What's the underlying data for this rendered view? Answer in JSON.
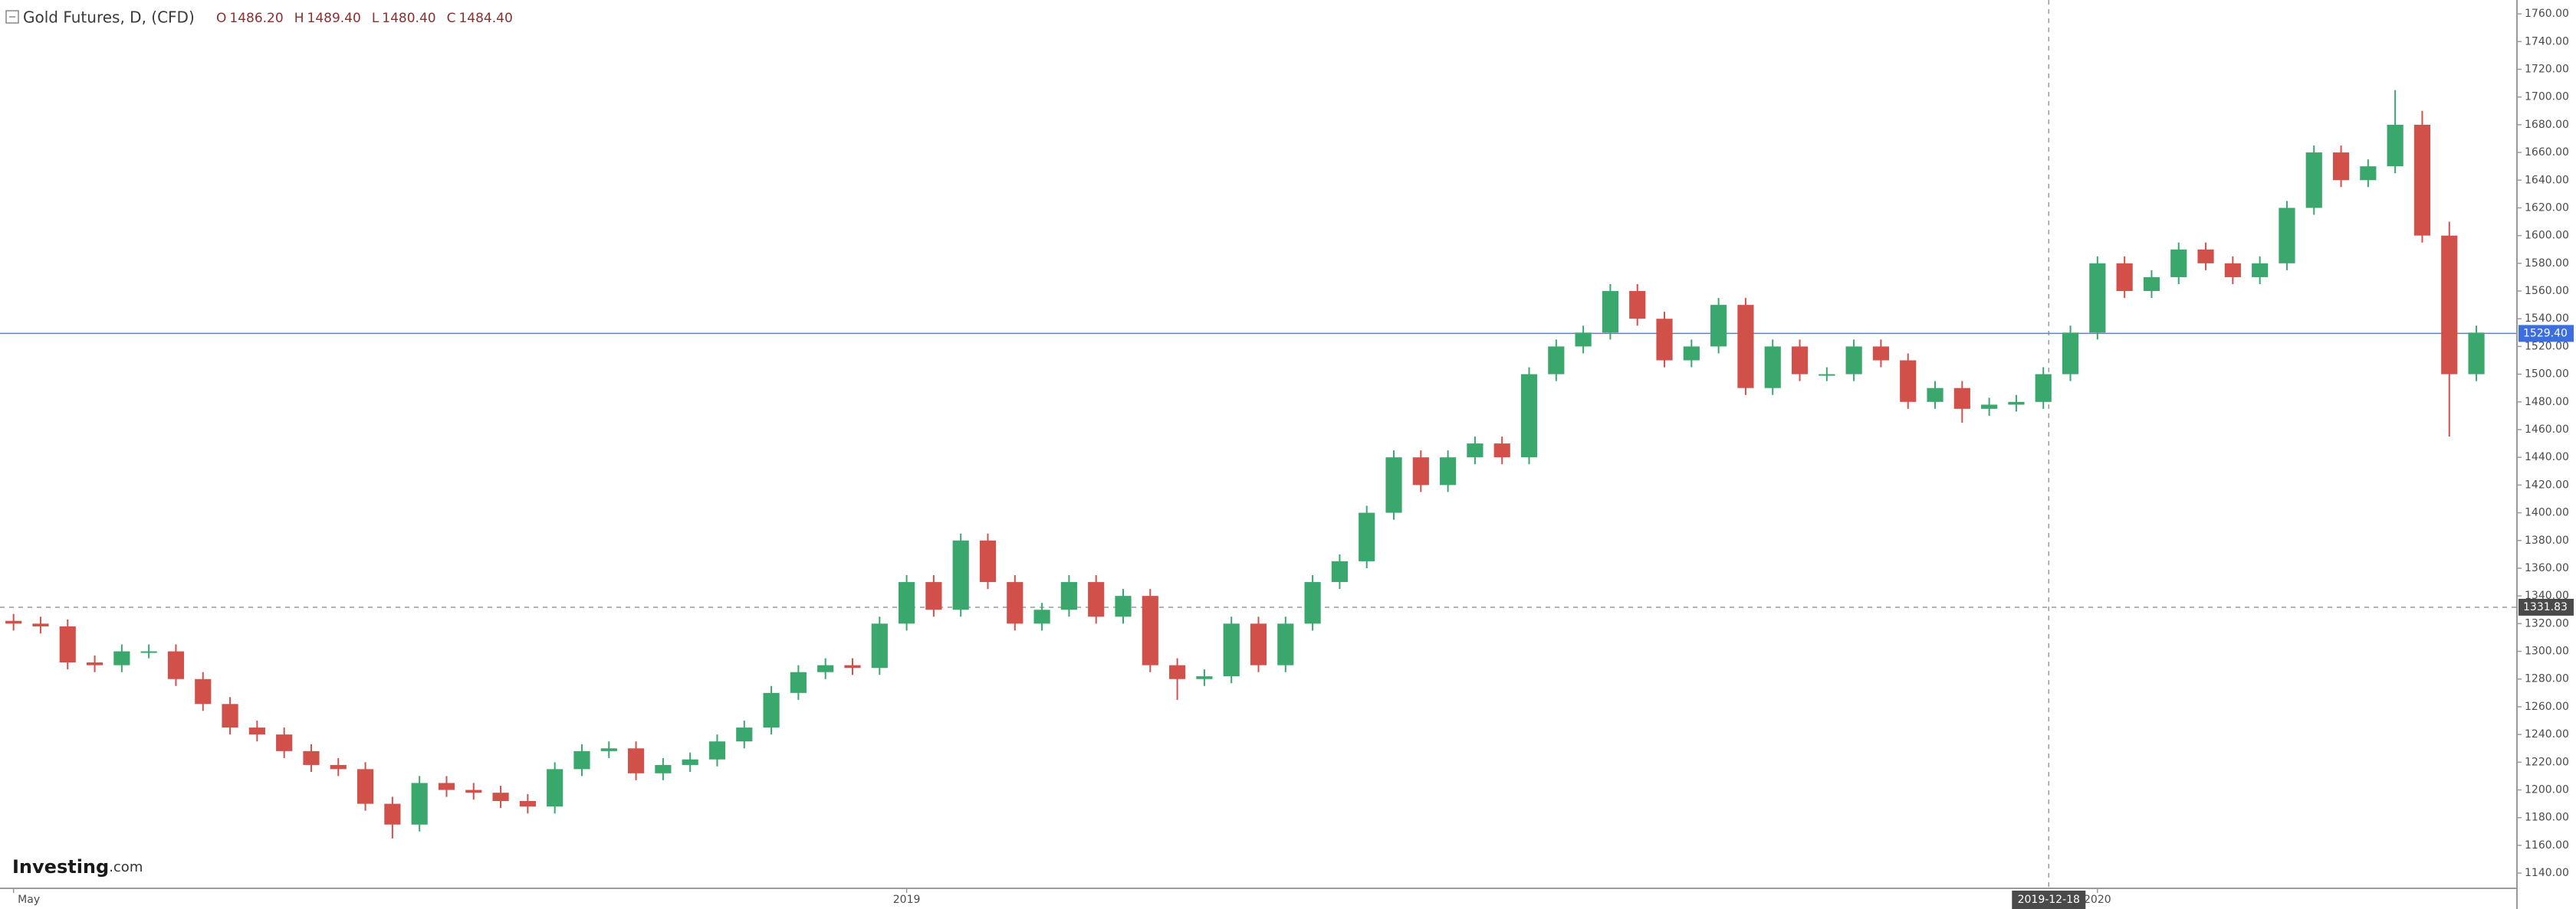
{
  "header": {
    "title": "Gold Futures, D, (CFD)",
    "ohlc": [
      {
        "key": "O",
        "value": {
          "value": 1486.2,
          "label": "1486.20"
        }
      },
      {
        "key": "H",
        "value": {
          "value": 1489.4,
          "label": "1489.40"
        }
      },
      {
        "key": "L",
        "value": {
          "value": 1480.4,
          "label": "1480.40"
        }
      },
      {
        "key": "C",
        "value": {
          "value": 1484.4,
          "label": "1484.40"
        }
      }
    ]
  },
  "logo": {
    "name": "Investing",
    "suffix": ".com"
  },
  "chart_data": {
    "type": "candlestick",
    "up_color": "#3aa76d",
    "down_color": "#d1514a",
    "open": [
      1322,
      1320,
      1318,
      1292,
      1290,
      1300,
      1300,
      1280,
      1262,
      1245,
      1240,
      1228,
      1218,
      1215,
      1190,
      1175,
      1205,
      1200,
      1198,
      1192,
      1188,
      1215,
      1228,
      1230,
      1212,
      1218,
      1222,
      1235,
      1245,
      1270,
      1285,
      1290,
      1288,
      1320,
      1350,
      1330,
      1380,
      1350,
      1320,
      1330,
      1350,
      1325,
      1340,
      1290,
      1280,
      1282,
      1320,
      1290,
      1320,
      1350,
      1365,
      1400,
      1440,
      1420,
      1440,
      1450,
      1440,
      1500,
      1520,
      1530,
      1560,
      1540,
      1510,
      1520,
      1550,
      1490,
      1520,
      1500,
      1500,
      1520,
      1510,
      1480,
      1490,
      1475,
      1478,
      1480,
      1500,
      1530,
      1580,
      1560,
      1570,
      1590,
      1580,
      1570,
      1580,
      1620,
      1660,
      1640,
      1650,
      1680,
      1600,
      1500
    ],
    "high": [
      1327,
      1325,
      1323,
      1297,
      1305,
      1305,
      1305,
      1285,
      1267,
      1250,
      1245,
      1233,
      1223,
      1220,
      1195,
      1210,
      1210,
      1205,
      1203,
      1197,
      1220,
      1233,
      1235,
      1235,
      1223,
      1227,
      1240,
      1250,
      1275,
      1290,
      1295,
      1295,
      1325,
      1355,
      1355,
      1385,
      1385,
      1355,
      1335,
      1355,
      1355,
      1345,
      1345,
      1295,
      1287,
      1325,
      1325,
      1325,
      1355,
      1370,
      1405,
      1445,
      1445,
      1445,
      1455,
      1455,
      1505,
      1525,
      1535,
      1565,
      1565,
      1545,
      1525,
      1555,
      1555,
      1525,
      1525,
      1505,
      1525,
      1525,
      1515,
      1495,
      1495,
      1483,
      1485,
      1505,
      1535,
      1585,
      1585,
      1575,
      1595,
      1595,
      1585,
      1585,
      1625,
      1665,
      1665,
      1655,
      1705,
      1690,
      1610,
      1535
    ],
    "low": [
      1315,
      1313,
      1287,
      1285,
      1285,
      1295,
      1275,
      1257,
      1240,
      1235,
      1223,
      1213,
      1210,
      1185,
      1165,
      1170,
      1195,
      1193,
      1187,
      1183,
      1183,
      1210,
      1223,
      1207,
      1207,
      1213,
      1217,
      1230,
      1240,
      1265,
      1280,
      1283,
      1283,
      1315,
      1325,
      1325,
      1345,
      1315,
      1315,
      1325,
      1320,
      1320,
      1285,
      1265,
      1275,
      1277,
      1285,
      1285,
      1315,
      1345,
      1360,
      1395,
      1415,
      1415,
      1435,
      1435,
      1435,
      1495,
      1515,
      1525,
      1535,
      1505,
      1505,
      1515,
      1485,
      1485,
      1495,
      1495,
      1495,
      1505,
      1475,
      1475,
      1465,
      1470,
      1473,
      1475,
      1495,
      1525,
      1555,
      1555,
      1565,
      1575,
      1565,
      1565,
      1575,
      1615,
      1635,
      1635,
      1645,
      1595,
      1455,
      1495
    ],
    "close": [
      1320,
      1318,
      1292,
      1290,
      1300,
      1300,
      1280,
      1262,
      1245,
      1240,
      1228,
      1218,
      1215,
      1190,
      1175,
      1205,
      1200,
      1198,
      1192,
      1188,
      1215,
      1228,
      1230,
      1212,
      1218,
      1222,
      1235,
      1245,
      1270,
      1285,
      1290,
      1288,
      1320,
      1350,
      1330,
      1380,
      1350,
      1320,
      1330,
      1350,
      1325,
      1340,
      1290,
      1280,
      1282,
      1320,
      1290,
      1320,
      1350,
      1365,
      1400,
      1440,
      1420,
      1440,
      1450,
      1440,
      1500,
      1520,
      1530,
      1560,
      1540,
      1510,
      1520,
      1550,
      1490,
      1520,
      1500,
      1500,
      1520,
      1510,
      1480,
      1490,
      1475,
      1478,
      1480,
      1500,
      1530,
      1580,
      1560,
      1570,
      1590,
      1580,
      1570,
      1580,
      1620,
      1660,
      1640,
      1650,
      1680,
      1600,
      1500,
      1530
    ],
    "xlim": [
      -0.5,
      92.5
    ],
    "xticks": [
      {
        "value": 0,
        "label": "May"
      },
      {
        "value": 33,
        "label": "2019"
      },
      {
        "value": 77,
        "label": "2020"
      }
    ],
    "crosshair": {
      "x": {
        "value": 75.2,
        "label": "2019-12-18"
      },
      "y": 1331.83
    },
    "last_price": {
      "value": 1529.4,
      "label": "1529.40"
    },
    "ylim": [
      1129,
      1770
    ],
    "yticks": [
      {
        "value": 1140,
        "label": "1140.00"
      },
      {
        "value": 1160,
        "label": "1160.00"
      },
      {
        "value": 1180,
        "label": "1180.00"
      },
      {
        "value": 1200,
        "label": "1200.00"
      },
      {
        "value": 1220,
        "label": "1220.00"
      },
      {
        "value": 1240,
        "label": "1240.00"
      },
      {
        "value": 1260,
        "label": "1260.00"
      },
      {
        "value": 1280,
        "label": "1280.00"
      },
      {
        "value": 1300,
        "label": "1300.00"
      },
      {
        "value": 1320,
        "label": "1320.00"
      },
      {
        "value": 1340,
        "label": "1340.00"
      },
      {
        "value": 1360,
        "label": "1360.00"
      },
      {
        "value": 1380,
        "label": "1380.00"
      },
      {
        "value": 1400,
        "label": "1400.00"
      },
      {
        "value": 1420,
        "label": "1420.00"
      },
      {
        "value": 1440,
        "label": "1440.00"
      },
      {
        "value": 1460,
        "label": "1460.00"
      },
      {
        "value": 1480,
        "label": "1480.00"
      },
      {
        "value": 1500,
        "label": "1500.00"
      },
      {
        "value": 1520,
        "label": "1520.00"
      },
      {
        "value": 1540,
        "label": "1540.00"
      },
      {
        "value": 1560,
        "label": "1560.00"
      },
      {
        "value": 1580,
        "label": "1580.00"
      },
      {
        "value": 1600,
        "label": "1600.00"
      },
      {
        "value": 1620,
        "label": "1620.00"
      },
      {
        "value": 1640,
        "label": "1640.00"
      },
      {
        "value": 1660,
        "label": "1660.00"
      },
      {
        "value": 1680,
        "label": "1680.00"
      },
      {
        "value": 1700,
        "label": "1700.00"
      },
      {
        "value": 1720,
        "label": "1720.00"
      },
      {
        "value": 1740,
        "label": "1740.00"
      },
      {
        "value": 1760,
        "label": "1760.00"
      }
    ]
  }
}
